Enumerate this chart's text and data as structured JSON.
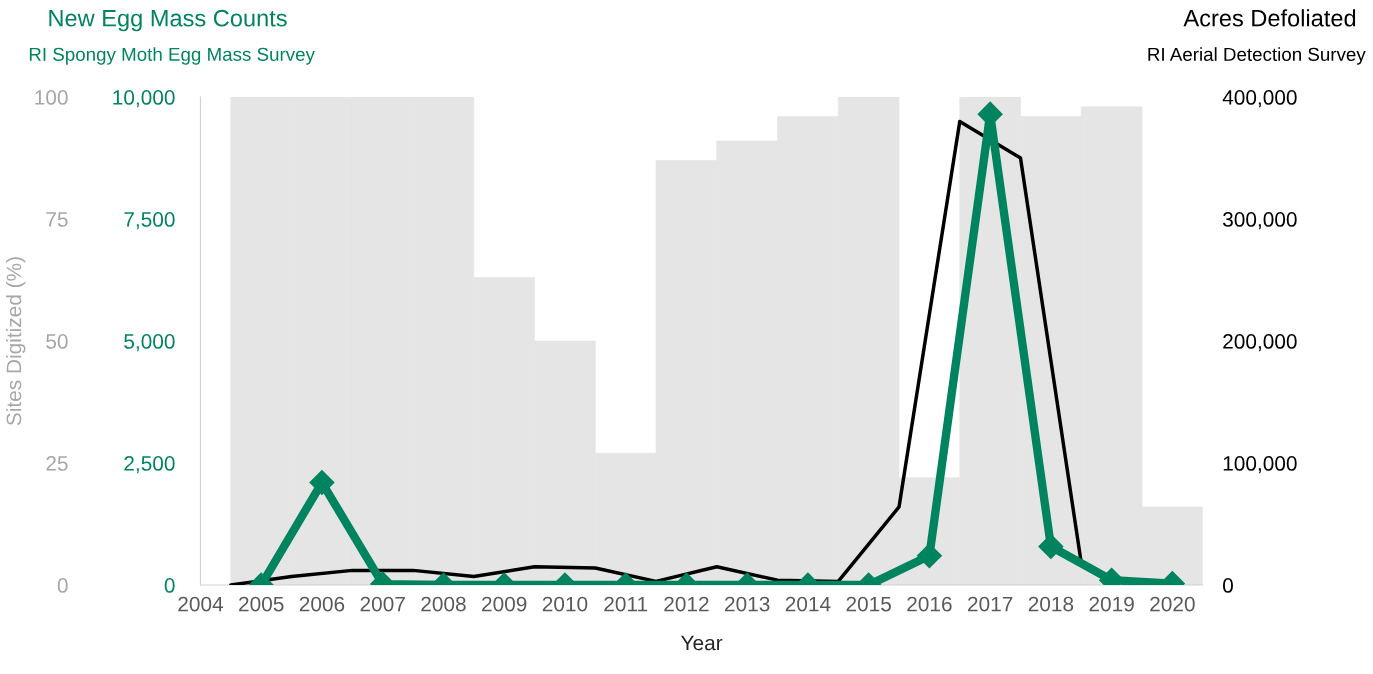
{
  "chart_data": {
    "type": "bar",
    "xlabel": "Year",
    "ylabel": "Sites Digitized (%)",
    "y2label": "New Egg Mass Counts",
    "y3label": "Acres Defoliated",
    "annotations": [
      "RI Spongy Moth Egg Mass Survey",
      "RI Aerial Detection Survey"
    ],
    "xlim": [
      2004,
      2020.5
    ],
    "xticks": [
      2004,
      2005,
      2006,
      2007,
      2008,
      2009,
      2010,
      2011,
      2012,
      2013,
      2014,
      2015,
      2016,
      2017,
      2018,
      2019,
      2020
    ],
    "ylim": [
      0,
      100
    ],
    "yticks": [
      0,
      25,
      50,
      75,
      100
    ],
    "y2lim": [
      0,
      10000
    ],
    "y2ticks": [
      {
        "value": 0,
        "label": "0"
      },
      {
        "value": 2500,
        "label": "2,500"
      },
      {
        "value": 5000,
        "label": "5,000"
      },
      {
        "value": 7500,
        "label": "7,500"
      },
      {
        "value": 10000,
        "label": "10,000"
      }
    ],
    "y3lim": [
      0,
      400000
    ],
    "y3ticks": [
      {
        "value": 0,
        "label": "0"
      },
      {
        "value": 100000,
        "label": "100,000"
      },
      {
        "value": 200000,
        "label": "200,000"
      },
      {
        "value": 300000,
        "label": "300,000"
      },
      {
        "value": 400000,
        "label": "400,000"
      }
    ],
    "grid": false,
    "legend": false,
    "series": [
      {
        "color": "#e5e5e5",
        "x": [
          2005,
          2006,
          2007,
          2008,
          2009,
          2010,
          2011,
          2012,
          2013,
          2014,
          2015,
          2016,
          2017,
          2018,
          2019,
          2020
        ],
        "values": [
          100,
          100,
          100,
          100,
          63,
          50,
          27,
          87,
          91,
          96,
          100,
          22,
          100,
          96,
          98,
          16
        ]
      },
      {
        "type": "line",
        "axis": "y3",
        "color": "#000000",
        "marker": "none",
        "line_style": "solid",
        "x": [
          2004.5,
          2005.5,
          2006.5,
          2007.5,
          2008.5,
          2009.5,
          2010.5,
          2011.5,
          2012.5,
          2013.5,
          2014.5,
          2015.5,
          2016.5,
          2017.5,
          2018.5
        ],
        "values": [
          0,
          7000,
          12000,
          12000,
          7000,
          15000,
          14000,
          3000,
          15000,
          4000,
          3000,
          64000,
          380000,
          350000,
          18000
        ]
      },
      {
        "type": "line",
        "axis": "y2",
        "color": "#00835f",
        "marker": "diamond",
        "line_style": "solid",
        "x": [
          2005,
          2006,
          2007,
          2008,
          2009,
          2010,
          2011,
          2012,
          2013,
          2014,
          2015,
          2016,
          2017,
          2018,
          2019,
          2020
        ],
        "values": [
          0,
          2100,
          20,
          0,
          0,
          0,
          0,
          0,
          0,
          0,
          0,
          600,
          9650,
          790,
          100,
          30
        ]
      }
    ]
  }
}
